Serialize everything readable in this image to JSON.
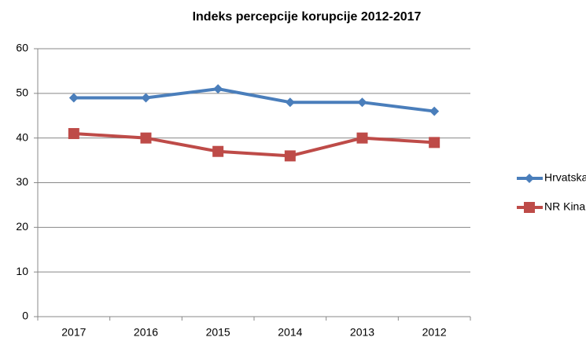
{
  "chart_data": {
    "type": "line",
    "title": "Indeks percepcije korupcije 2012-2017",
    "categories": [
      "2017",
      "2016",
      "2015",
      "2014",
      "2013",
      "2012"
    ],
    "series": [
      {
        "name": "Hrvatska",
        "color": "#4a7ebb",
        "marker": "diamond",
        "values": [
          49,
          49,
          51,
          48,
          48,
          46
        ]
      },
      {
        "name": "NR Kina",
        "color": "#be4b48",
        "marker": "square",
        "values": [
          41,
          40,
          37,
          36,
          40,
          39
        ]
      }
    ],
    "ylim": [
      0,
      60
    ],
    "yticks": [
      0,
      10,
      20,
      30,
      40,
      50,
      60
    ],
    "grid": true,
    "legend": "right"
  }
}
